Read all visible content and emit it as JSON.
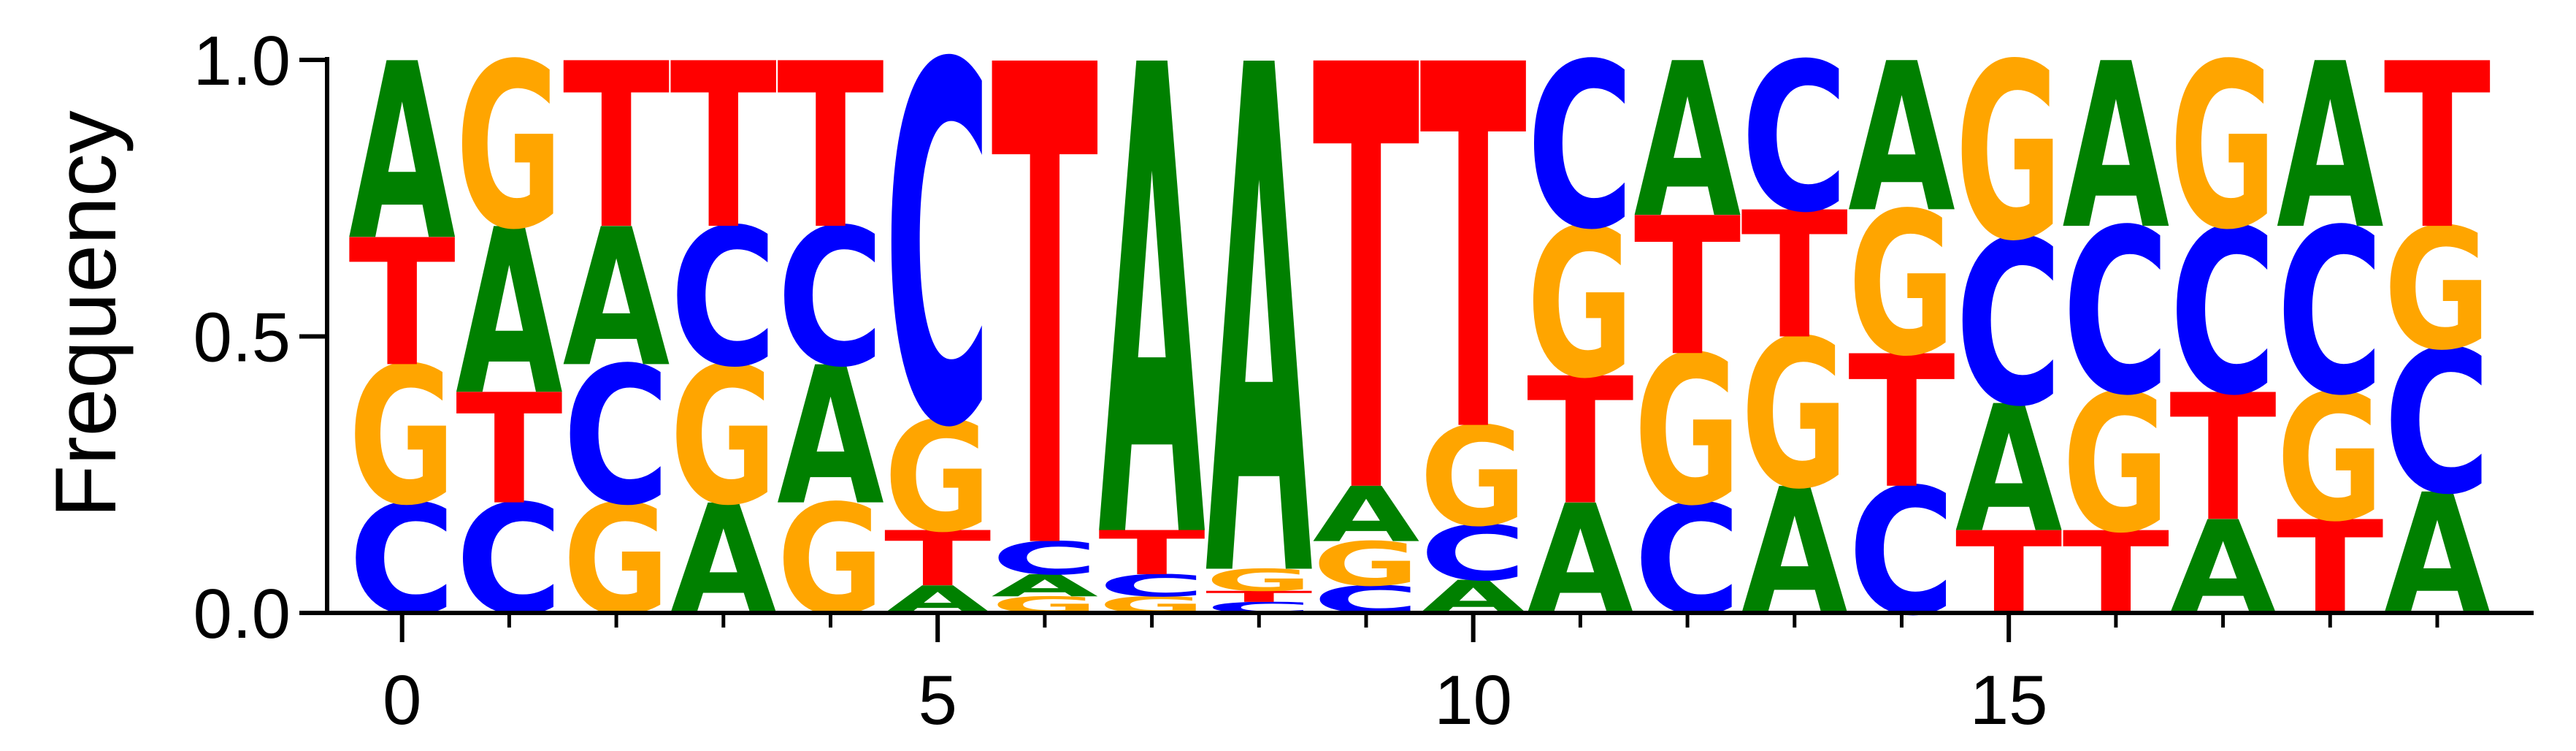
{
  "chart_data": {
    "type": "sequence-logo",
    "ylabel": "Frequency",
    "xlabel": "",
    "ylim": [
      0,
      1
    ],
    "xlim": [
      -0.7,
      19.9
    ],
    "x_ticks": [
      0,
      5,
      10,
      15
    ],
    "x_tick_labels": [
      "0",
      "5",
      "10",
      "15"
    ],
    "x_minor_ticks": [
      0,
      1,
      2,
      3,
      4,
      5,
      6,
      7,
      8,
      9,
      10,
      11,
      12,
      13,
      14,
      15,
      16,
      17,
      18,
      19
    ],
    "y_ticks": [
      0,
      0.5,
      1
    ],
    "y_tick_labels": [
      "0.0",
      "0.5",
      "1.0"
    ],
    "grid": false,
    "colors": {
      "A": "#008000",
      "C": "#0000ff",
      "G": "#ffa500",
      "T": "#ff0000"
    },
    "positions": [
      {
        "x": 0,
        "stack": [
          [
            "C",
            0.2
          ],
          [
            "G",
            0.25
          ],
          [
            "T",
            0.23
          ],
          [
            "A",
            0.32
          ]
        ]
      },
      {
        "x": 1,
        "stack": [
          [
            "C",
            0.2
          ],
          [
            "T",
            0.2
          ],
          [
            "A",
            0.3
          ],
          [
            "G",
            0.3
          ]
        ]
      },
      {
        "x": 2,
        "stack": [
          [
            "G",
            0.2
          ],
          [
            "C",
            0.25
          ],
          [
            "A",
            0.25
          ],
          [
            "T",
            0.3
          ]
        ]
      },
      {
        "x": 3,
        "stack": [
          [
            "A",
            0.2
          ],
          [
            "G",
            0.25
          ],
          [
            "C",
            0.25
          ],
          [
            "T",
            0.3
          ]
        ]
      },
      {
        "x": 4,
        "stack": [
          [
            "G",
            0.2
          ],
          [
            "A",
            0.25
          ],
          [
            "C",
            0.25
          ],
          [
            "T",
            0.3
          ]
        ]
      },
      {
        "x": 5,
        "stack": [
          [
            "A",
            0.05
          ],
          [
            "T",
            0.1
          ],
          [
            "G",
            0.2
          ],
          [
            "C",
            0.65
          ]
        ]
      },
      {
        "x": 6,
        "stack": [
          [
            "G",
            0.03
          ],
          [
            "A",
            0.04
          ],
          [
            "C",
            0.06
          ],
          [
            "T",
            0.87
          ]
        ]
      },
      {
        "x": 7,
        "stack": [
          [
            "G",
            0.03
          ],
          [
            "C",
            0.04
          ],
          [
            "T",
            0.08
          ],
          [
            "A",
            0.85
          ]
        ]
      },
      {
        "x": 8,
        "stack": [
          [
            "C",
            0.02
          ],
          [
            "T",
            0.02
          ],
          [
            "G",
            0.04
          ],
          [
            "A",
            0.92
          ]
        ]
      },
      {
        "x": 9,
        "stack": [
          [
            "C",
            0.05
          ],
          [
            "G",
            0.08
          ],
          [
            "A",
            0.1
          ],
          [
            "T",
            0.77
          ]
        ]
      },
      {
        "x": 10,
        "stack": [
          [
            "A",
            0.06
          ],
          [
            "C",
            0.1
          ],
          [
            "G",
            0.18
          ],
          [
            "T",
            0.66
          ]
        ]
      },
      {
        "x": 11,
        "stack": [
          [
            "A",
            0.2
          ],
          [
            "T",
            0.23
          ],
          [
            "G",
            0.27
          ],
          [
            "C",
            0.3
          ]
        ]
      },
      {
        "x": 12,
        "stack": [
          [
            "C",
            0.2
          ],
          [
            "G",
            0.27
          ],
          [
            "T",
            0.25
          ],
          [
            "A",
            0.28
          ]
        ]
      },
      {
        "x": 13,
        "stack": [
          [
            "A",
            0.23
          ],
          [
            "G",
            0.27
          ],
          [
            "T",
            0.23
          ],
          [
            "C",
            0.27
          ]
        ]
      },
      {
        "x": 14,
        "stack": [
          [
            "C",
            0.23
          ],
          [
            "T",
            0.24
          ],
          [
            "G",
            0.26
          ],
          [
            "A",
            0.27
          ]
        ]
      },
      {
        "x": 15,
        "stack": [
          [
            "T",
            0.15
          ],
          [
            "A",
            0.23
          ],
          [
            "C",
            0.3
          ],
          [
            "G",
            0.32
          ]
        ]
      },
      {
        "x": 16,
        "stack": [
          [
            "T",
            0.15
          ],
          [
            "G",
            0.25
          ],
          [
            "C",
            0.3
          ],
          [
            "A",
            0.3
          ]
        ]
      },
      {
        "x": 17,
        "stack": [
          [
            "A",
            0.17
          ],
          [
            "T",
            0.23
          ],
          [
            "C",
            0.3
          ],
          [
            "G",
            0.3
          ]
        ]
      },
      {
        "x": 18,
        "stack": [
          [
            "T",
            0.17
          ],
          [
            "G",
            0.23
          ],
          [
            "C",
            0.3
          ],
          [
            "A",
            0.3
          ]
        ]
      },
      {
        "x": 19,
        "stack": [
          [
            "A",
            0.22
          ],
          [
            "C",
            0.26
          ],
          [
            "G",
            0.22
          ],
          [
            "T",
            0.3
          ]
        ]
      }
    ]
  }
}
